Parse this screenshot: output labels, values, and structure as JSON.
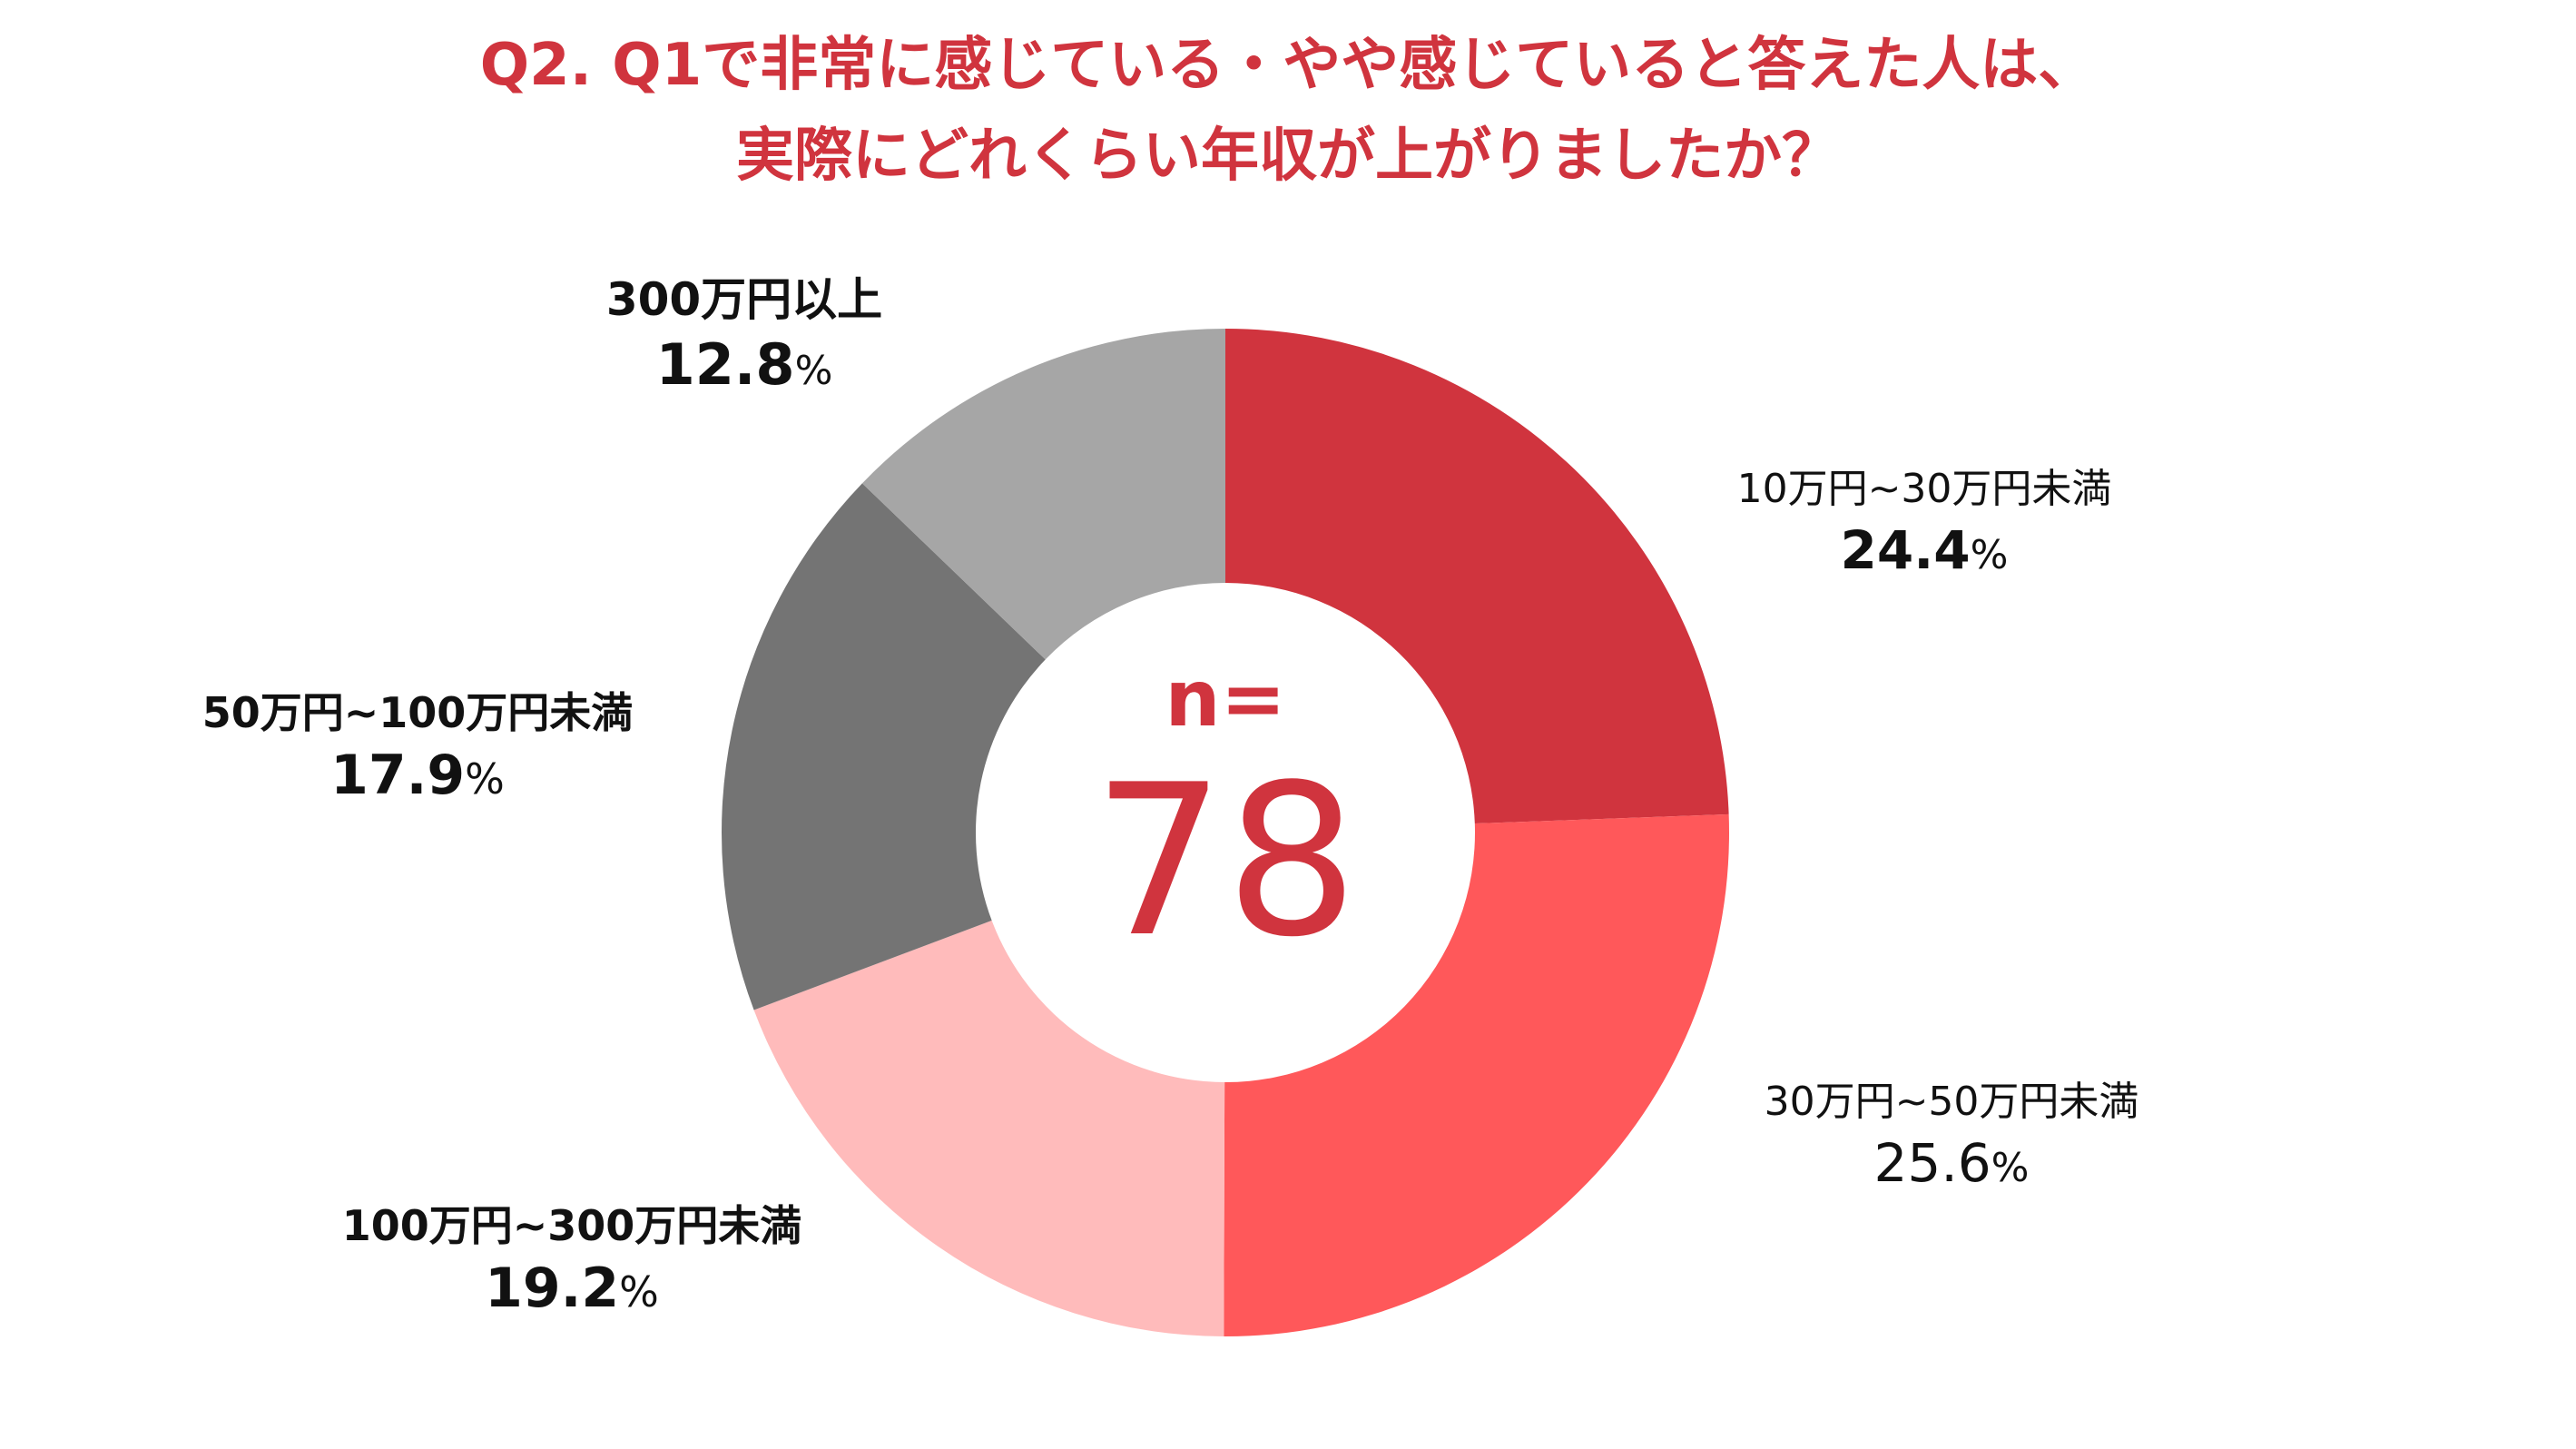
{
  "chart_data": {
    "type": "pie",
    "style": "donut",
    "title": [
      "Q2. Q1で非常に感じている・やや感じていると答えた人は、",
      "実際にどれくらい年収が上がりましたか？"
    ],
    "categories": [
      "10万円~30万円未満",
      "30万円~50万円未満",
      "100万円~300万円未満",
      "50万円~100万円未満",
      "300万円以上"
    ],
    "values": [
      24.4,
      25.6,
      19.2,
      17.9,
      12.8
    ],
    "value_labels": [
      "24.4",
      "25.6",
      "19.2",
      "17.9",
      "12.8"
    ],
    "unit": "%",
    "colors": [
      "#d0343e",
      "#ff585a",
      "#ffbbbb",
      "#747474",
      "#a6a6a6"
    ],
    "center": {
      "label": "n=",
      "value": "78"
    }
  }
}
